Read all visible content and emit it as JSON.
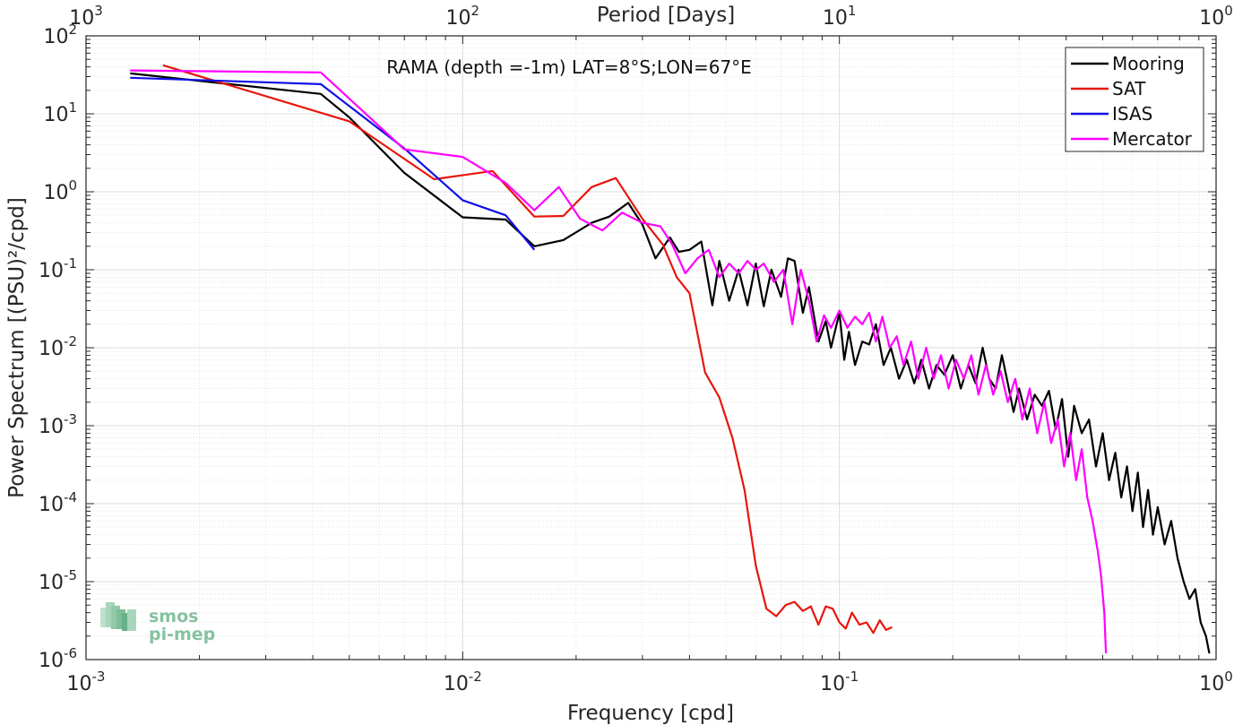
{
  "chart_data": {
    "type": "line",
    "title": "RAMA (depth =-1m) LAT=8°S;LON=67°E",
    "xlabel": "Frequency [cpd]",
    "ylabel": "Power Spectrum [(PSU)²/cpd]",
    "top_xlabel": "Period [Days]",
    "xscale": "log",
    "yscale": "log",
    "xlim": [
      0.001,
      1
    ],
    "ylim": [
      1e-06,
      100
    ],
    "grid": true,
    "legend_position": "top-right",
    "x_tick_labels": [
      {
        "base": "10",
        "exp": "-3"
      },
      {
        "base": "10",
        "exp": "-2"
      },
      {
        "base": "10",
        "exp": "-1"
      },
      {
        "base": "10",
        "exp": "0"
      }
    ],
    "top_tick_labels": [
      {
        "base": "10",
        "exp": "3"
      },
      {
        "base": "10",
        "exp": "2"
      },
      {
        "base": "10",
        "exp": "1"
      },
      {
        "base": "10",
        "exp": "0"
      }
    ],
    "y_tick_labels": [
      {
        "base": "10",
        "exp": "-6"
      },
      {
        "base": "10",
        "exp": "-5"
      },
      {
        "base": "10",
        "exp": "-4"
      },
      {
        "base": "10",
        "exp": "-3"
      },
      {
        "base": "10",
        "exp": "-2"
      },
      {
        "base": "10",
        "exp": "-1"
      },
      {
        "base": "10",
        "exp": "0"
      },
      {
        "base": "10",
        "exp": "1"
      },
      {
        "base": "10",
        "exp": "2"
      }
    ],
    "series": [
      {
        "name": "Mooring",
        "color": "#000000",
        "points": [
          [
            0.00131,
            33
          ],
          [
            0.0042,
            18
          ],
          [
            0.005,
            9
          ],
          [
            0.007,
            1.75
          ],
          [
            0.01,
            0.47
          ],
          [
            0.013,
            0.44
          ],
          [
            0.0155,
            0.2
          ],
          [
            0.0185,
            0.24
          ],
          [
            0.022,
            0.4
          ],
          [
            0.0245,
            0.48
          ],
          [
            0.0275,
            0.72
          ],
          [
            0.03,
            0.38
          ],
          [
            0.0325,
            0.14
          ],
          [
            0.0355,
            0.26
          ],
          [
            0.0375,
            0.17
          ],
          [
            0.04,
            0.18
          ],
          [
            0.043,
            0.23
          ],
          [
            0.046,
            0.035
          ],
          [
            0.048,
            0.13
          ],
          [
            0.051,
            0.04
          ],
          [
            0.054,
            0.1
          ],
          [
            0.057,
            0.035
          ],
          [
            0.06,
            0.12
          ],
          [
            0.063,
            0.034
          ],
          [
            0.066,
            0.1
          ],
          [
            0.07,
            0.045
          ],
          [
            0.073,
            0.14
          ],
          [
            0.076,
            0.13
          ],
          [
            0.08,
            0.028
          ],
          [
            0.083,
            0.06
          ],
          [
            0.088,
            0.012
          ],
          [
            0.092,
            0.022
          ],
          [
            0.095,
            0.01
          ],
          [
            0.1,
            0.028
          ],
          [
            0.103,
            0.007
          ],
          [
            0.106,
            0.016
          ],
          [
            0.11,
            0.006
          ],
          [
            0.115,
            0.012
          ],
          [
            0.12,
            0.011
          ],
          [
            0.125,
            0.02
          ],
          [
            0.131,
            0.006
          ],
          [
            0.137,
            0.01
          ],
          [
            0.144,
            0.004
          ],
          [
            0.151,
            0.007
          ],
          [
            0.158,
            0.0035
          ],
          [
            0.165,
            0.007
          ],
          [
            0.173,
            0.003
          ],
          [
            0.181,
            0.006
          ],
          [
            0.19,
            0.0045
          ],
          [
            0.2,
            0.008
          ],
          [
            0.21,
            0.003
          ],
          [
            0.22,
            0.006
          ],
          [
            0.23,
            0.0035
          ],
          [
            0.24,
            0.01
          ],
          [
            0.25,
            0.004
          ],
          [
            0.26,
            0.003
          ],
          [
            0.27,
            0.008
          ],
          [
            0.28,
            0.0035
          ],
          [
            0.29,
            0.0015
          ],
          [
            0.3,
            0.003
          ],
          [
            0.315,
            0.0012
          ],
          [
            0.33,
            0.0025
          ],
          [
            0.345,
            0.0018
          ],
          [
            0.36,
            0.0028
          ],
          [
            0.375,
            0.0009
          ],
          [
            0.39,
            0.0022
          ],
          [
            0.405,
            0.0004
          ],
          [
            0.42,
            0.0018
          ],
          [
            0.44,
            0.0008
          ],
          [
            0.46,
            0.0012
          ],
          [
            0.48,
            0.0003
          ],
          [
            0.5,
            0.0008
          ],
          [
            0.52,
            0.0002
          ],
          [
            0.54,
            0.00045
          ],
          [
            0.56,
            0.00012
          ],
          [
            0.58,
            0.0003
          ],
          [
            0.6,
            8e-05
          ],
          [
            0.62,
            0.00025
          ],
          [
            0.64,
            5e-05
          ],
          [
            0.66,
            0.00015
          ],
          [
            0.68,
            4e-05
          ],
          [
            0.7,
            9e-05
          ],
          [
            0.73,
            3e-05
          ],
          [
            0.76,
            6e-05
          ],
          [
            0.79,
            2e-05
          ],
          [
            0.82,
            1e-05
          ],
          [
            0.85,
            6e-06
          ],
          [
            0.88,
            8e-06
          ],
          [
            0.91,
            3e-06
          ],
          [
            0.94,
            2e-06
          ],
          [
            0.96,
            1.2e-06
          ]
        ]
      },
      {
        "name": "SAT",
        "color": "#e8160c",
        "points": [
          [
            0.0016,
            42
          ],
          [
            0.005,
            8
          ],
          [
            0.0084,
            1.45
          ],
          [
            0.012,
            1.85
          ],
          [
            0.0155,
            0.48
          ],
          [
            0.0185,
            0.49
          ],
          [
            0.022,
            1.15
          ],
          [
            0.0255,
            1.5
          ],
          [
            0.03,
            0.45
          ],
          [
            0.034,
            0.21
          ],
          [
            0.037,
            0.08
          ],
          [
            0.04,
            0.05
          ],
          [
            0.044,
            0.0048
          ],
          [
            0.048,
            0.0023
          ],
          [
            0.052,
            0.0007
          ],
          [
            0.056,
            0.00015
          ],
          [
            0.06,
            1.6e-05
          ],
          [
            0.064,
            4.5e-06
          ],
          [
            0.068,
            3.6e-06
          ],
          [
            0.072,
            5e-06
          ],
          [
            0.076,
            5.5e-06
          ],
          [
            0.08,
            4.2e-06
          ],
          [
            0.084,
            4.8e-06
          ],
          [
            0.088,
            2.8e-06
          ],
          [
            0.092,
            4.8e-06
          ],
          [
            0.096,
            4.5e-06
          ],
          [
            0.1,
            3e-06
          ],
          [
            0.104,
            2.5e-06
          ],
          [
            0.108,
            4e-06
          ],
          [
            0.113,
            2.8e-06
          ],
          [
            0.118,
            3e-06
          ],
          [
            0.123,
            2.2e-06
          ],
          [
            0.128,
            3.2e-06
          ],
          [
            0.133,
            2.4e-06
          ],
          [
            0.138,
            2.6e-06
          ]
        ]
      },
      {
        "name": "ISAS",
        "color": "#1010e6",
        "points": [
          [
            0.00131,
            29
          ],
          [
            0.0042,
            24
          ],
          [
            0.007,
            3.6
          ],
          [
            0.01,
            0.78
          ],
          [
            0.013,
            0.5
          ],
          [
            0.0155,
            0.18
          ]
        ]
      },
      {
        "name": "Mercator",
        "color": "#ff00ff",
        "points": [
          [
            0.00131,
            36
          ],
          [
            0.0042,
            34
          ],
          [
            0.007,
            3.5
          ],
          [
            0.01,
            2.8
          ],
          [
            0.013,
            1.3
          ],
          [
            0.0155,
            0.58
          ],
          [
            0.018,
            1.15
          ],
          [
            0.0205,
            0.45
          ],
          [
            0.0235,
            0.32
          ],
          [
            0.0265,
            0.54
          ],
          [
            0.03,
            0.4
          ],
          [
            0.0335,
            0.36
          ],
          [
            0.036,
            0.21
          ],
          [
            0.039,
            0.09
          ],
          [
            0.042,
            0.14
          ],
          [
            0.045,
            0.18
          ],
          [
            0.048,
            0.08
          ],
          [
            0.051,
            0.12
          ],
          [
            0.054,
            0.09
          ],
          [
            0.057,
            0.13
          ],
          [
            0.06,
            0.1
          ],
          [
            0.063,
            0.12
          ],
          [
            0.067,
            0.07
          ],
          [
            0.071,
            0.1
          ],
          [
            0.075,
            0.02
          ],
          [
            0.079,
            0.1
          ],
          [
            0.083,
            0.04
          ],
          [
            0.087,
            0.012
          ],
          [
            0.091,
            0.026
          ],
          [
            0.095,
            0.018
          ],
          [
            0.1,
            0.03
          ],
          [
            0.105,
            0.018
          ],
          [
            0.11,
            0.025
          ],
          [
            0.115,
            0.02
          ],
          [
            0.12,
            0.028
          ],
          [
            0.125,
            0.012
          ],
          [
            0.13,
            0.025
          ],
          [
            0.136,
            0.01
          ],
          [
            0.142,
            0.014
          ],
          [
            0.148,
            0.006
          ],
          [
            0.155,
            0.012
          ],
          [
            0.162,
            0.004
          ],
          [
            0.17,
            0.01
          ],
          [
            0.178,
            0.004
          ],
          [
            0.186,
            0.008
          ],
          [
            0.195,
            0.003
          ],
          [
            0.204,
            0.007
          ],
          [
            0.214,
            0.004
          ],
          [
            0.224,
            0.008
          ],
          [
            0.234,
            0.0025
          ],
          [
            0.245,
            0.006
          ],
          [
            0.256,
            0.0025
          ],
          [
            0.268,
            0.005
          ],
          [
            0.28,
            0.002
          ],
          [
            0.293,
            0.004
          ],
          [
            0.306,
            0.0012
          ],
          [
            0.32,
            0.003
          ],
          [
            0.335,
            0.0008
          ],
          [
            0.35,
            0.002
          ],
          [
            0.365,
            0.0006
          ],
          [
            0.38,
            0.0012
          ],
          [
            0.395,
            0.0003
          ],
          [
            0.41,
            0.0008
          ],
          [
            0.425,
            0.0002
          ],
          [
            0.44,
            0.0005
          ],
          [
            0.455,
            0.00012
          ],
          [
            0.47,
            6e-05
          ],
          [
            0.485,
            2.5e-05
          ],
          [
            0.495,
            1.2e-05
          ],
          [
            0.505,
            4e-06
          ],
          [
            0.51,
            1.2e-06
          ]
        ]
      }
    ]
  },
  "logo": {
    "line1": "smos",
    "line2": "pi-mep"
  }
}
